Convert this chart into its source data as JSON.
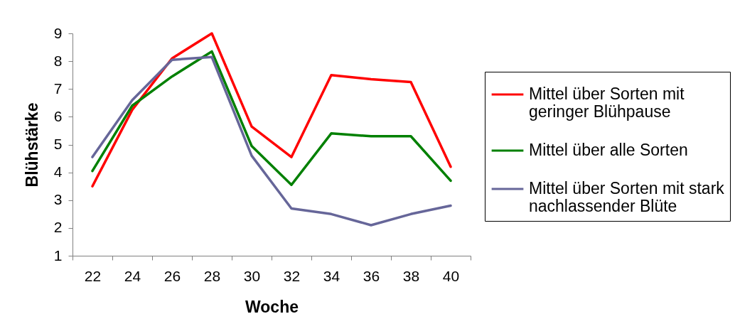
{
  "chart_data": {
    "type": "line",
    "xlabel": "Woche",
    "ylabel": "Blühstärke",
    "categories": [
      "22",
      "24",
      "26",
      "28",
      "30",
      "32",
      "34",
      "36",
      "38",
      "40"
    ],
    "ylim": [
      1,
      9
    ],
    "yticks": [
      1,
      2,
      3,
      4,
      5,
      6,
      7,
      8,
      9
    ],
    "grid": false,
    "legend": "right",
    "marker": "none",
    "line_style": "solid",
    "series": [
      {
        "name": "Mittel über Sorten mit geringer Blühpause",
        "color": "#ff0000",
        "values": [
          3.5,
          6.25,
          8.1,
          9.0,
          5.65,
          4.55,
          7.5,
          7.35,
          7.25,
          4.2
        ]
      },
      {
        "name": "Mittel über alle Sorten",
        "color": "#008000",
        "values": [
          4.05,
          6.4,
          7.45,
          8.35,
          4.95,
          3.55,
          5.4,
          5.3,
          5.3,
          3.7
        ]
      },
      {
        "name": "Mittel über Sorten mit stark nachlassender Blüte",
        "color": "#666699",
        "values": [
          4.55,
          6.6,
          8.05,
          8.15,
          4.6,
          2.7,
          2.5,
          2.1,
          2.5,
          2.8
        ]
      }
    ]
  }
}
